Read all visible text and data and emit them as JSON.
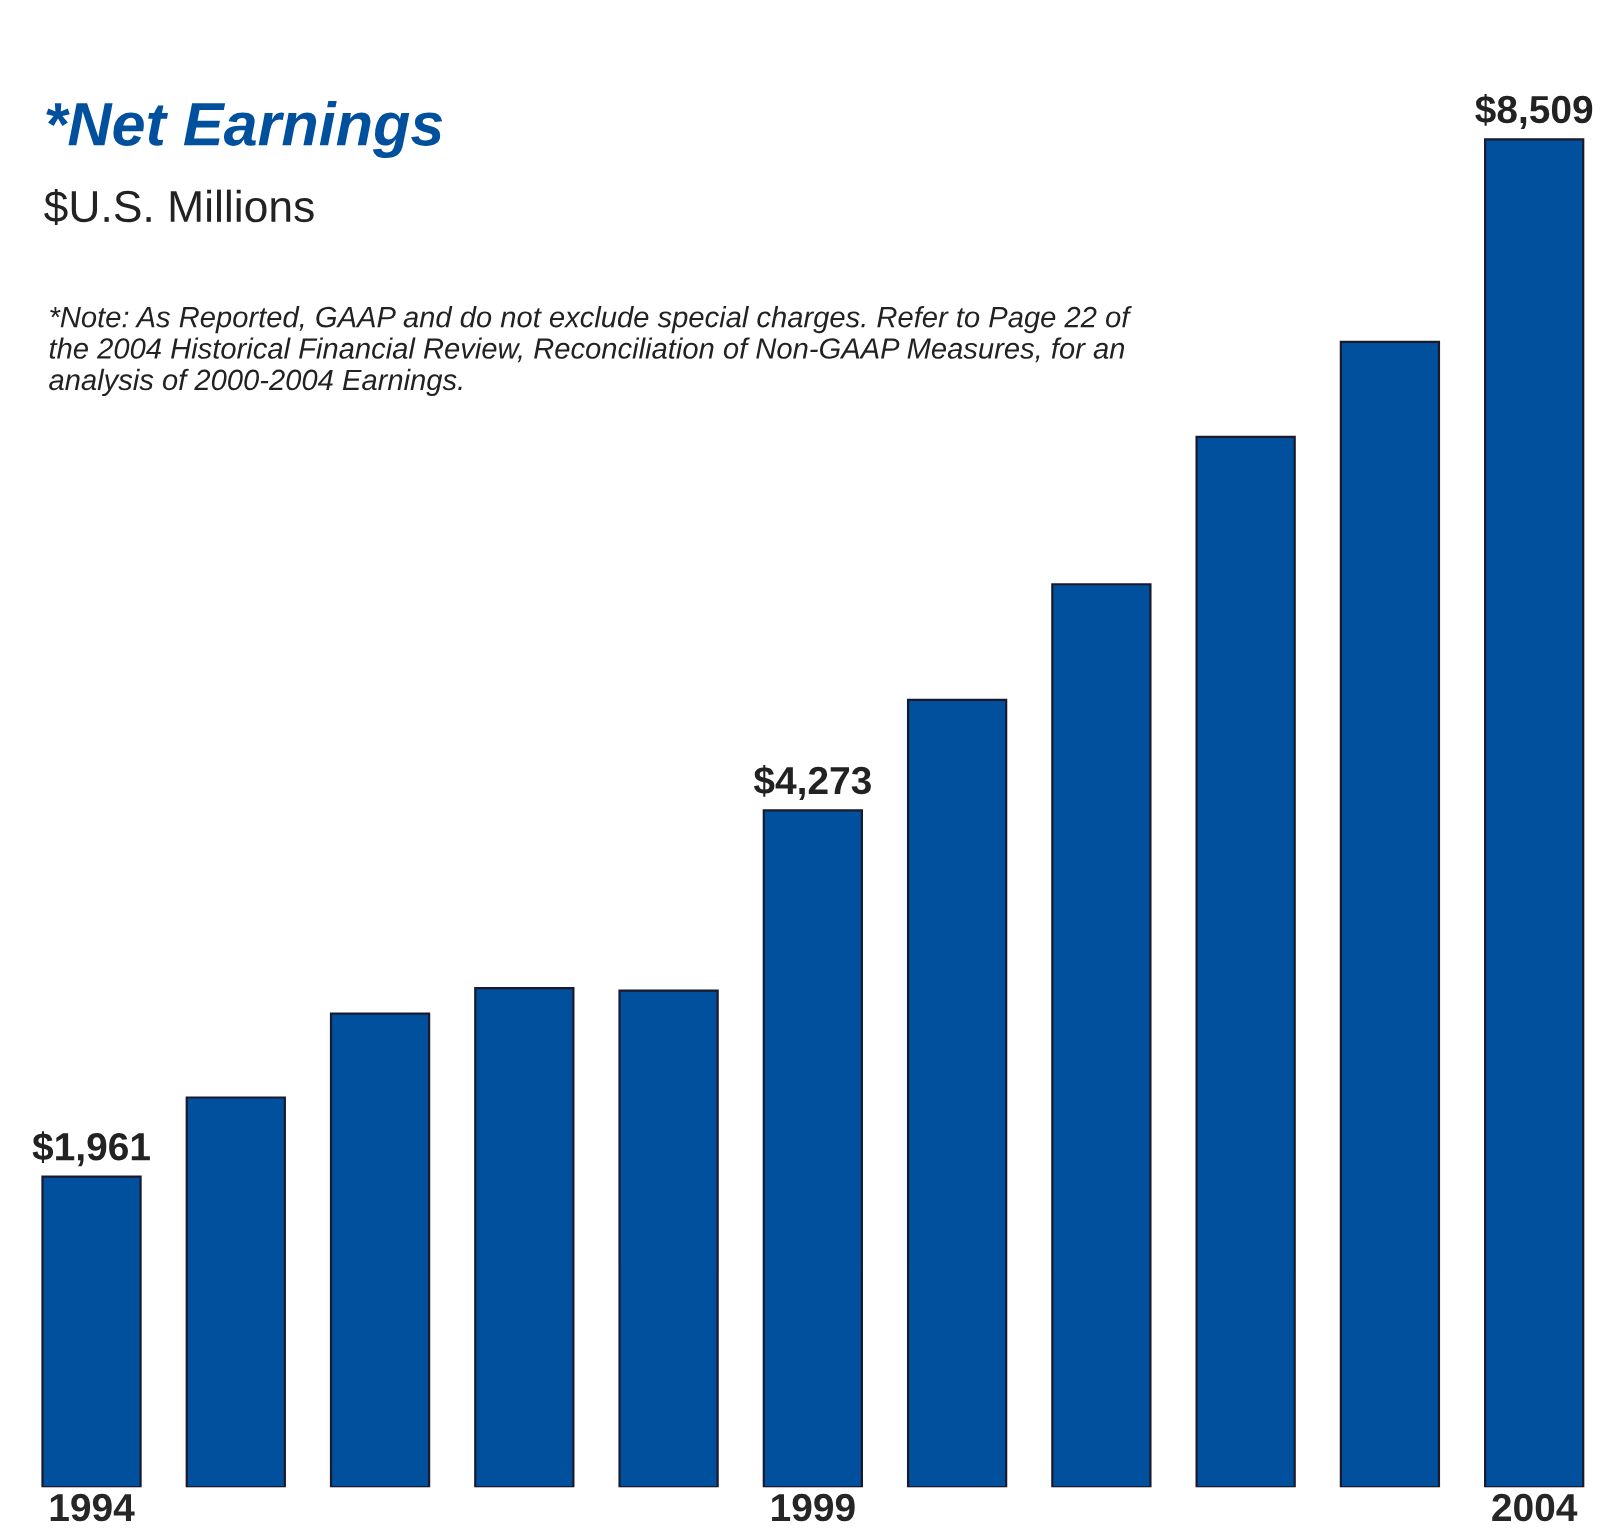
{
  "chart_data": {
    "type": "bar",
    "title": "*Net Earnings",
    "subtitle": "$U.S. Millions",
    "annotations": [
      "*Note: As Reported, GAAP and do not exclude special charges. Refer to Page 22 of the 2004 Historical Financial Review, Reconciliation of Non-GAAP Measures, for an analysis of 2000-2004 Earnings."
    ],
    "categories": [
      "1994",
      null,
      null,
      null,
      null,
      "1999",
      null,
      null,
      null,
      null,
      "2004"
    ],
    "values": [
      1961,
      2460,
      2990,
      3150,
      3135,
      4273,
      4970,
      5700,
      6630,
      7230,
      8509
    ],
    "value_labels": [
      "$1,961",
      null,
      null,
      null,
      null,
      "$4,273",
      null,
      null,
      null,
      null,
      "$8,509"
    ],
    "color": "#00509e",
    "grid": false,
    "legend": false
  }
}
